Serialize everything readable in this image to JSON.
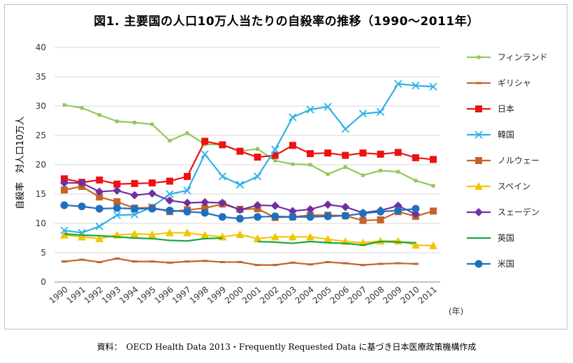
{
  "title": "図1. 主要国の人口10万人当たりの自殺率の推移（1990〜2011年）",
  "source": "資料：　OECD Health Data 2013・Frequently Requested Data に基づき日本医療政策機構作成",
  "chart_data": {
    "type": "line",
    "title": "図1. 主要国の人口10万人当たりの自殺率の推移（1990〜2011年）",
    "ylabel": "自殺率　対人口10万人",
    "xlabel": "(年)",
    "ylim": [
      0,
      40
    ],
    "yticks": [
      0,
      5,
      10,
      15,
      20,
      25,
      30,
      35,
      40
    ],
    "grid": "horizontal",
    "legend_position": "right",
    "x": [
      1990,
      1991,
      1992,
      1993,
      1994,
      1995,
      1996,
      1997,
      1998,
      1999,
      2000,
      2001,
      2002,
      2003,
      2004,
      2005,
      2006,
      2007,
      2008,
      2009,
      2010,
      2011
    ],
    "series": [
      {
        "name": "フィンランド",
        "color": "#92c85a",
        "marker": "square-small",
        "values": [
          30.2,
          29.7,
          28.5,
          27.4,
          27.2,
          26.9,
          24.1,
          25.4,
          23.5,
          23.4,
          22.3,
          22.7,
          20.7,
          20.1,
          20.0,
          18.4,
          19.6,
          18.2,
          19.0,
          18.8,
          17.3,
          16.4
        ]
      },
      {
        "name": "ギリシャ",
        "color": "#c5632a",
        "marker": "dash",
        "values": [
          3.5,
          3.8,
          3.4,
          4.0,
          3.5,
          3.5,
          3.3,
          3.5,
          3.6,
          3.4,
          3.4,
          2.9,
          2.9,
          3.3,
          3.0,
          3.4,
          3.2,
          2.9,
          3.1,
          3.2,
          3.1,
          null
        ]
      },
      {
        "name": "日本",
        "color": "#ee1111",
        "marker": "square",
        "values": [
          17.6,
          17.0,
          17.4,
          16.7,
          16.8,
          16.9,
          17.2,
          18.0,
          24.0,
          23.4,
          22.3,
          21.3,
          21.6,
          23.3,
          21.9,
          22.0,
          21.6,
          22.0,
          21.8,
          22.1,
          21.2,
          20.9
        ]
      },
      {
        "name": "韓国",
        "color": "#2bb2e8",
        "marker": "x",
        "values": [
          8.8,
          8.4,
          9.5,
          11.4,
          11.5,
          12.8,
          15.0,
          15.6,
          21.8,
          18.0,
          16.6,
          18.0,
          22.6,
          28.1,
          29.4,
          29.9,
          26.1,
          28.7,
          29.0,
          33.8,
          33.5,
          33.3
        ]
      },
      {
        "name": "ノルウェー",
        "color": "#c5632a",
        "marker": "square",
        "values": [
          15.7,
          16.3,
          14.5,
          13.7,
          12.6,
          12.7,
          12.0,
          12.3,
          12.6,
          13.3,
          12.4,
          12.5,
          11.0,
          11.1,
          11.4,
          11.4,
          11.3,
          10.5,
          10.6,
          12.0,
          11.2,
          12.1
        ]
      },
      {
        "name": "スペイン",
        "color": "#f2c500",
        "marker": "triangle",
        "values": [
          8.0,
          7.7,
          7.4,
          8.0,
          8.2,
          8.1,
          8.4,
          8.4,
          8.0,
          7.7,
          8.1,
          7.4,
          7.7,
          7.7,
          7.7,
          7.3,
          6.9,
          6.7,
          7.0,
          7.0,
          6.3,
          6.2
        ]
      },
      {
        "name": "スェーデン",
        "color": "#7030a0",
        "marker": "diamond",
        "values": [
          16.9,
          16.9,
          15.4,
          15.6,
          14.8,
          15.1,
          13.9,
          13.5,
          13.6,
          13.5,
          12.3,
          13.1,
          13.0,
          12.1,
          12.4,
          13.2,
          12.8,
          11.8,
          12.2,
          13.0,
          11.6,
          null
        ]
      },
      {
        "name": "英国",
        "color": "#17a643",
        "marker": "none",
        "values": [
          8.2,
          8.0,
          7.9,
          7.7,
          7.5,
          7.4,
          7.1,
          7.0,
          7.4,
          7.5,
          null,
          6.9,
          6.8,
          6.6,
          6.9,
          6.7,
          6.6,
          6.3,
          6.9,
          6.8,
          6.7,
          null
        ]
      },
      {
        "name": "米国",
        "color": "#1f6fbf",
        "marker": "circle",
        "values": [
          13.1,
          12.9,
          12.5,
          12.6,
          12.5,
          12.5,
          12.2,
          12.0,
          11.8,
          11.1,
          10.8,
          11.1,
          11.2,
          11.1,
          11.1,
          11.2,
          11.3,
          11.7,
          12.0,
          12.2,
          12.5,
          null
        ]
      }
    ]
  }
}
